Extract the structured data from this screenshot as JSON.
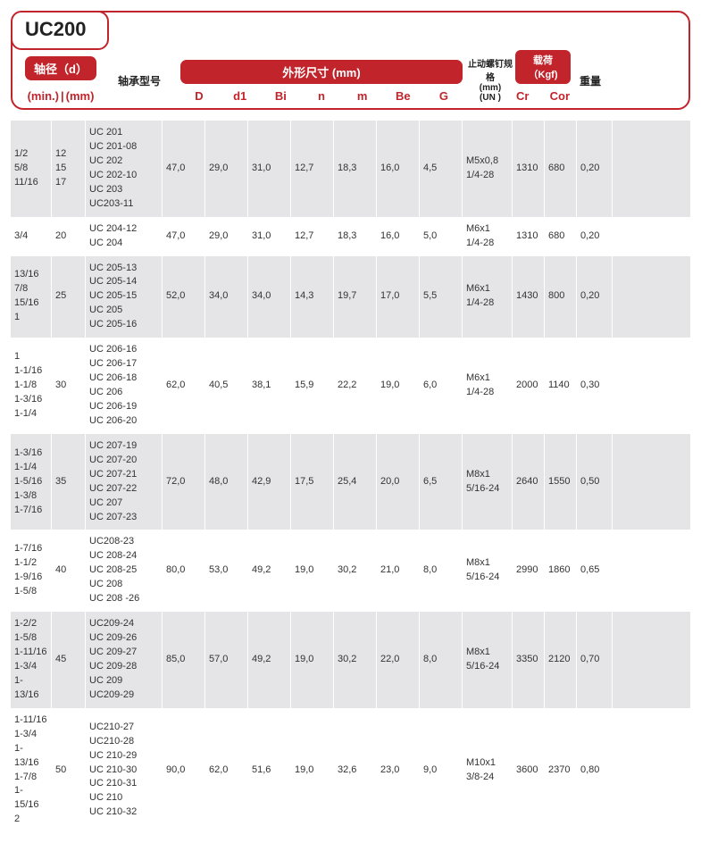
{
  "title": "UC200",
  "headers": {
    "axis_pill": "轴径（d）",
    "axis_sub_min": "(min.)",
    "axis_sub_sep": "|",
    "axis_sub_mm": "(mm)",
    "model": "轴承型号",
    "dims_pill": "外形尺寸 (mm)",
    "dims_cols": [
      "D",
      "d1",
      "Bi",
      "n",
      "m",
      "Be",
      "G"
    ],
    "screw_label": "止动螺钉规格",
    "screw_sub1": "(mm)",
    "screw_sub2": "(UN )",
    "load_pill": "载荷（Kgf)",
    "load_cols": [
      "Cr",
      "Cor"
    ],
    "weight": "重量"
  },
  "rows": [
    {
      "alt": true,
      "min": [
        "1/2",
        "5/8",
        "11/16"
      ],
      "mm": [
        "12",
        "15",
        "17"
      ],
      "model": [
        "UC 201",
        "UC 201-08",
        "UC 202",
        "UC 202-10",
        "UC 203",
        "UC203-11"
      ],
      "dims": [
        "47,0",
        "29,0",
        "31,0",
        "12,7",
        "18,3",
        "16,0",
        "4,5"
      ],
      "screw": [
        "M5x0,8",
        "1/4-28"
      ],
      "cr": "1310",
      "cor": "680",
      "wt": "0,20"
    },
    {
      "alt": false,
      "min": [
        "3/4"
      ],
      "mm": [
        "20"
      ],
      "model": [
        "UC 204-12",
        "UC 204"
      ],
      "dims": [
        "47,0",
        "29,0",
        "31,0",
        "12,7",
        "18,3",
        "16,0",
        "5,0"
      ],
      "screw": [
        "M6x1",
        "1/4-28"
      ],
      "cr": "1310",
      "cor": "680",
      "wt": "0,20"
    },
    {
      "alt": true,
      "min": [
        "13/16",
        "7/8",
        "15/16",
        "1"
      ],
      "mm": [
        "25"
      ],
      "model": [
        "UC 205-13",
        "UC 205-14",
        "UC 205-15",
        "UC 205",
        "UC 205-16"
      ],
      "dims": [
        "52,0",
        "34,0",
        "34,0",
        "14,3",
        "19,7",
        "17,0",
        "5,5"
      ],
      "screw": [
        "M6x1",
        "1/4-28"
      ],
      "cr": "1430",
      "cor": "800",
      "wt": "0,20"
    },
    {
      "alt": false,
      "min": [
        "1",
        "1-1/16",
        "1-1/8",
        "1-3/16",
        "1-1/4"
      ],
      "mm": [
        "30"
      ],
      "model": [
        "UC 206-16",
        "UC 206-17",
        "UC 206-18",
        "UC 206",
        "UC 206-19",
        "UC 206-20"
      ],
      "dims": [
        "62,0",
        "40,5",
        "38,1",
        "15,9",
        "22,2",
        "19,0",
        "6,0"
      ],
      "screw": [
        "M6x1",
        "1/4-28"
      ],
      "cr": "2000",
      "cor": "1140",
      "wt": "0,30"
    },
    {
      "alt": true,
      "min": [
        "1-3/16",
        "1-1/4",
        "1-5/16",
        "1-3/8",
        "1-7/16"
      ],
      "mm": [
        "35"
      ],
      "model": [
        "UC 207-19",
        "UC 207-20",
        "UC 207-21",
        "UC 207-22",
        "UC 207",
        "UC 207-23"
      ],
      "dims": [
        "72,0",
        "48,0",
        "42,9",
        "17,5",
        "25,4",
        "20,0",
        "6,5"
      ],
      "screw": [
        "M8x1",
        "5/16-24"
      ],
      "cr": "2640",
      "cor": "1550",
      "wt": "0,50"
    },
    {
      "alt": false,
      "min": [
        "1-7/16",
        "1-1/2",
        "1-9/16",
        "1-5/8"
      ],
      "mm": [
        "40"
      ],
      "model": [
        "UC208-23",
        "UC 208-24",
        "UC 208-25",
        "UC 208",
        "UC 208 -26"
      ],
      "dims": [
        "80,0",
        "53,0",
        "49,2",
        "19,0",
        "30,2",
        "21,0",
        "8,0"
      ],
      "screw": [
        "M8x1",
        "5/16-24"
      ],
      "cr": "2990",
      "cor": "1860",
      "wt": "0,65"
    },
    {
      "alt": true,
      "min": [
        "1-2/2",
        "1-5/8",
        "1-11/16",
        "1-3/4",
        "1-13/16"
      ],
      "mm": [
        "45"
      ],
      "model": [
        "UC209-24",
        "UC 209-26",
        "UC 209-27",
        "UC 209-28",
        "UC 209",
        "UC209-29"
      ],
      "dims": [
        "85,0",
        "57,0",
        "49,2",
        "19,0",
        "30,2",
        "22,0",
        "8,0"
      ],
      "screw": [
        "M8x1",
        "5/16-24"
      ],
      "cr": "3350",
      "cor": "2120",
      "wt": "0,70"
    },
    {
      "alt": false,
      "min": [
        "1-11/16",
        "1-3/4",
        "1-13/16",
        "1-7/8",
        "1-15/16",
        "2"
      ],
      "mm": [
        "50"
      ],
      "model": [
        "UC210-27",
        "UC210-28",
        "UC 210-29",
        "UC 210-30",
        "UC 210-31",
        "UC 210",
        "UC 210-32"
      ],
      "dims": [
        "90,0",
        "62,0",
        "51,6",
        "19,0",
        "32,6",
        "23,0",
        "9,0"
      ],
      "screw": [
        "M10x1",
        "3/8-24"
      ],
      "cr": "3600",
      "cor": "2370",
      "wt": "0,80"
    }
  ],
  "colors": {
    "accent": "#c2242b",
    "row_alt": "#e5e5e7"
  }
}
